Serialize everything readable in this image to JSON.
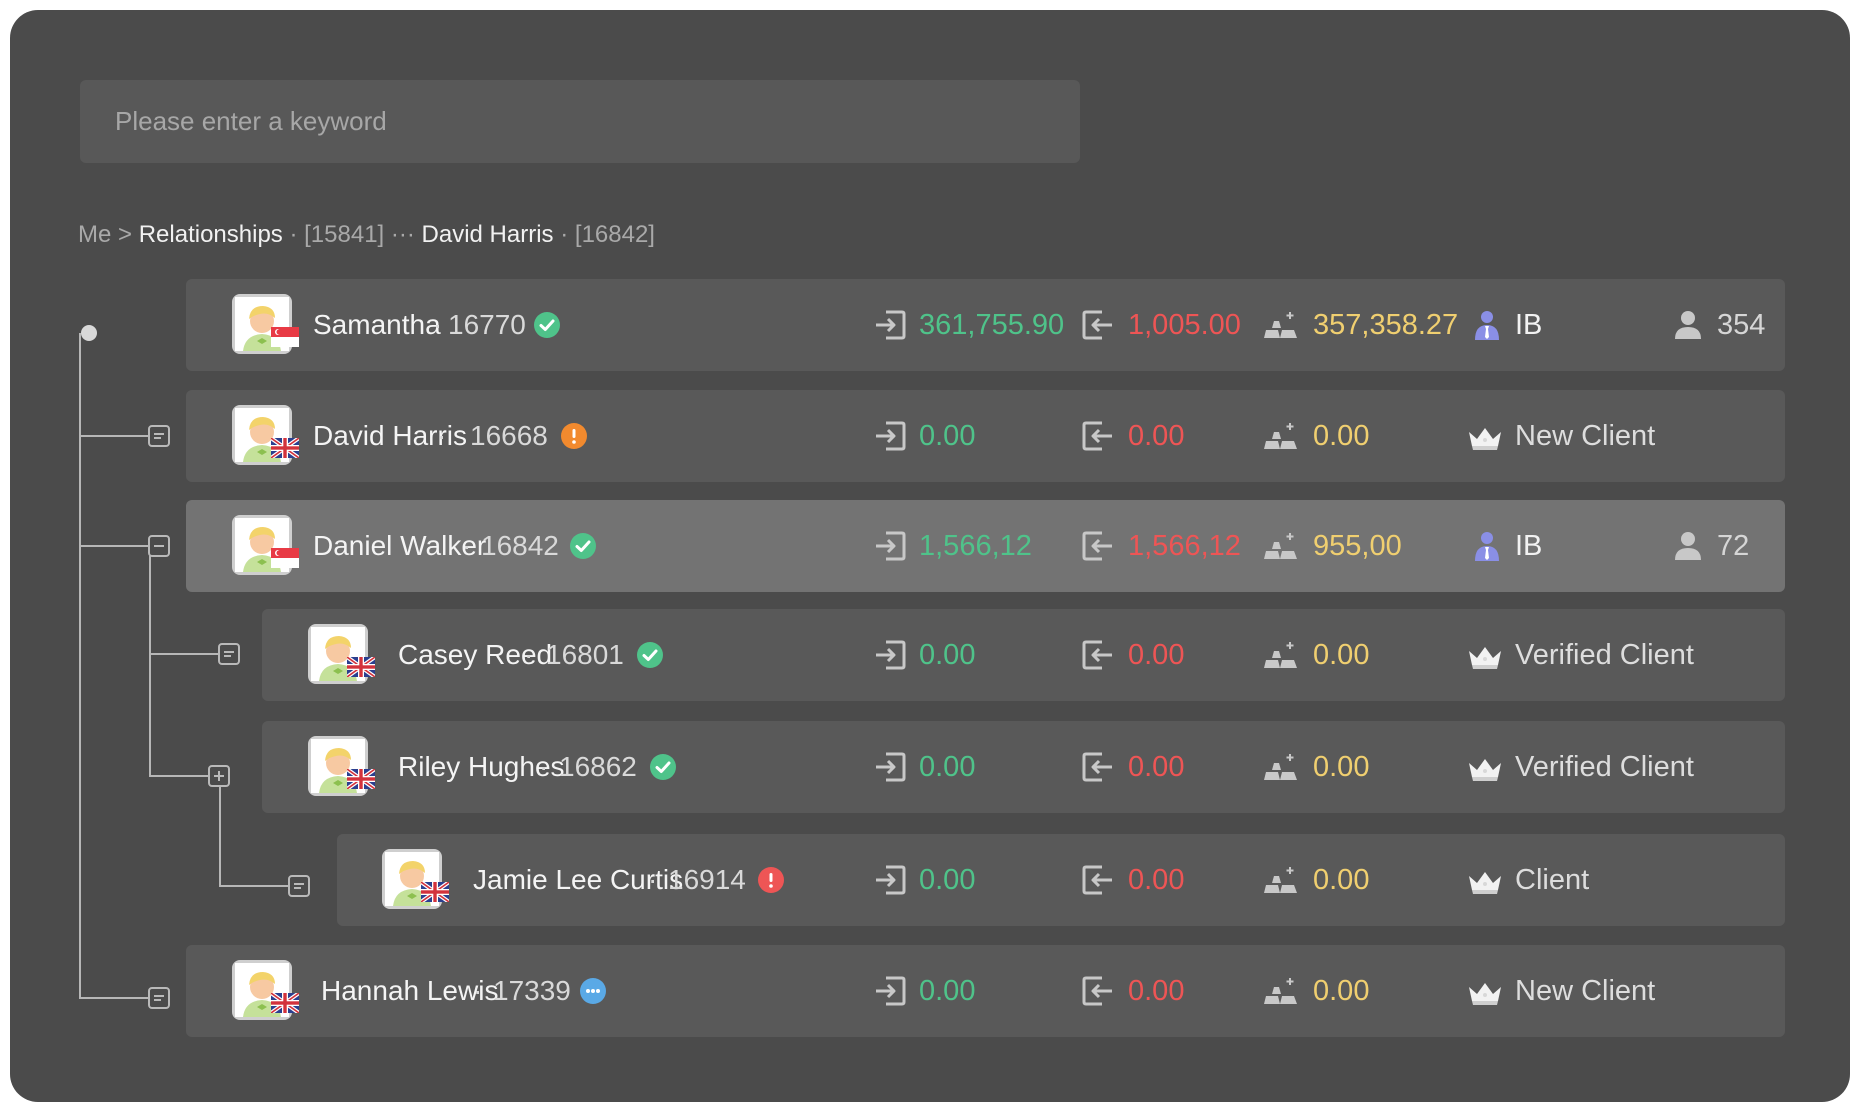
{
  "search": {
    "placeholder": "Please enter a keyword",
    "value": ""
  },
  "breadcrumb": {
    "root": "Me >",
    "section": "Relationships",
    "first_id": "· [15841]",
    "ellipsis": "···",
    "name": "David Harris",
    "last_id": "· [16842]"
  },
  "colors": {
    "deposit": "#4fc38a",
    "withdraw": "#ee5555",
    "balance": "#f0cf70",
    "verified": "#4fc38a",
    "warning": "#f28a2e",
    "error": "#ee5555",
    "pending": "#5aa9e6"
  },
  "rows": [
    {
      "name": "Samantha",
      "id": "16770",
      "flag": "sg-flag-icon",
      "status": "verified",
      "deposit": "361,755.90",
      "withdraw": "1,005.00",
      "balance": "357,358.27",
      "level_icon": "ib-icon",
      "level": "IB",
      "count": "354"
    },
    {
      "name": "David Harris",
      "id": "16668",
      "flag": "uk-flag-icon",
      "status": "warning",
      "deposit": "0.00",
      "withdraw": "0.00",
      "balance": "0.00",
      "level_icon": "crown-icon",
      "level": "New Client"
    },
    {
      "name": "Daniel Walker",
      "id": "16842",
      "flag": "sg-flag-icon",
      "status": "verified",
      "deposit": "1,566,12",
      "withdraw": "1,566,12",
      "balance": "955,00",
      "level_icon": "ib-icon",
      "level": "IB",
      "count": "72"
    },
    {
      "name": "Casey Reed",
      "id": "16801",
      "flag": "uk-flag-icon",
      "status": "verified",
      "deposit": "0.00",
      "withdraw": "0.00",
      "balance": "0.00",
      "level_icon": "crown-icon",
      "level": "Verified Client"
    },
    {
      "name": "Riley Hughes",
      "id": "16862",
      "flag": "uk-flag-icon",
      "status": "verified",
      "deposit": "0.00",
      "withdraw": "0.00",
      "balance": "0.00",
      "level_icon": "crown-icon",
      "level": "Verified Client"
    },
    {
      "name": "Jamie Lee Curtis",
      "id": "16914",
      "flag": "uk-flag-icon",
      "status": "error",
      "deposit": "0.00",
      "withdraw": "0.00",
      "balance": "0.00",
      "level_icon": "crown-icon",
      "level": "Client"
    },
    {
      "name": "Hannah Lewis",
      "id": "17339",
      "flag": "uk-flag-icon",
      "status": "pending",
      "deposit": "0.00",
      "withdraw": "0.00",
      "balance": "0.00",
      "level_icon": "crown-icon",
      "level": "New Client"
    }
  ]
}
